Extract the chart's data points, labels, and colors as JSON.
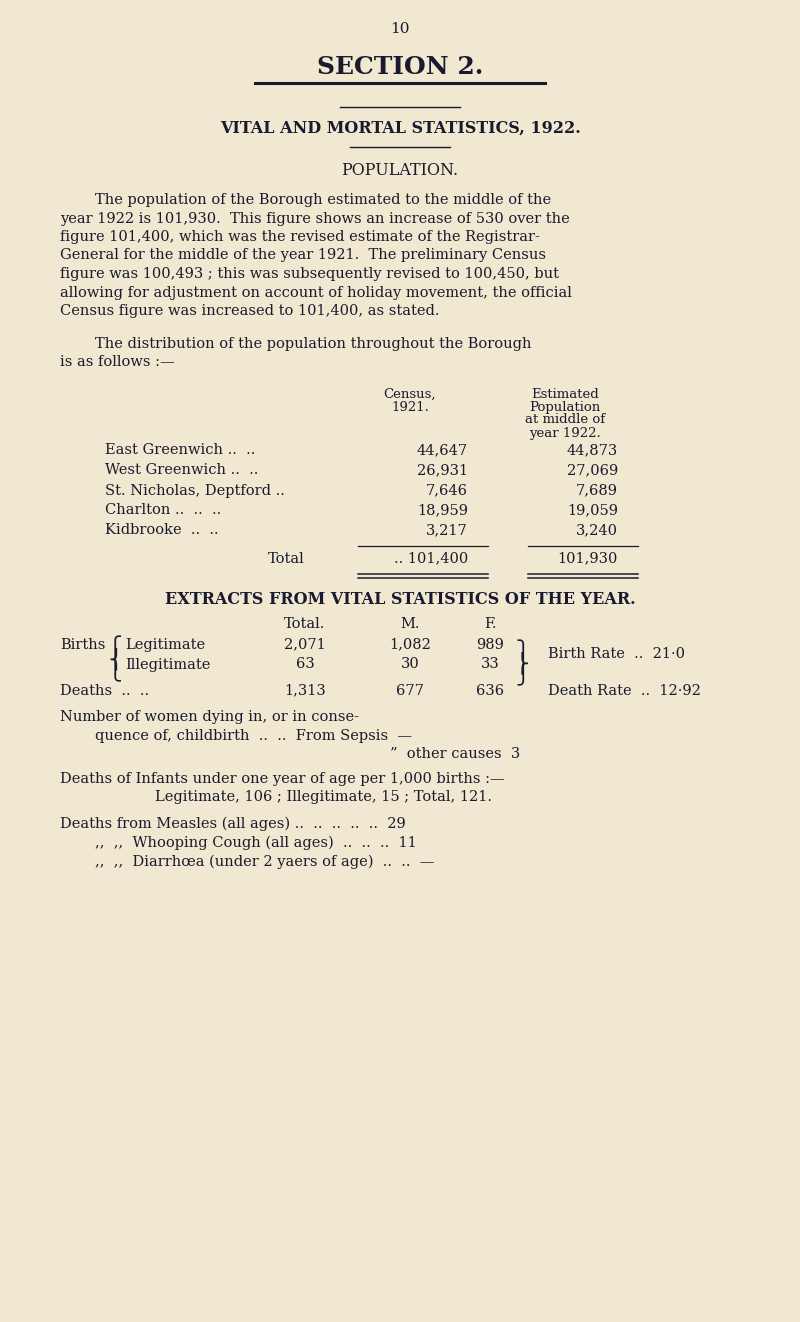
{
  "bg_color": "#f0e8d0",
  "text_color": "#1a1a2e",
  "page_number": "10",
  "section_title": "SECTION 2.",
  "subtitle": "VITAL AND MORTAL STATISTICS, 1922.",
  "pop_heading": "POPULATION.",
  "para1_lines": [
    "The population of the Borough estimated to the middle of the",
    "year 1922 is 101,930.  This figure shows an increase of 530 over the",
    "figure 101,400, which was the revised estimate of the Registrar-",
    "General for the middle of the year 1921.  The preliminary Census",
    "figure was 100,493 ; this was subsequently revised to 100,450, but",
    "allowing for adjustment on account of holiday movement, the official",
    "Census figure was increased to 101,400, as stated."
  ],
  "para2_lines": [
    "The distribution of the population throughout the Borough",
    "is as follows :—"
  ],
  "table_rows": [
    [
      "East Greenwich ..  ..",
      "44,647",
      "44,873"
    ],
    [
      "West Greenwich ..  ..",
      "26,931",
      "27,069"
    ],
    [
      "St. Nicholas, Deptford ..",
      "7,646",
      "7,689"
    ],
    [
      "Charlton ..  ..  ..",
      "18,959",
      "19,059"
    ],
    [
      "Kidbrooke  ..  ..",
      "3,217",
      "3,240"
    ]
  ],
  "total_label": "Total",
  "total_census": ".. 101,400",
  "total_est": "101,930",
  "extracts_heading": "EXTRACTS FROM VITAL STATISTICS OF THE YEAR.",
  "bg_color_hex": "#f0e8d0"
}
